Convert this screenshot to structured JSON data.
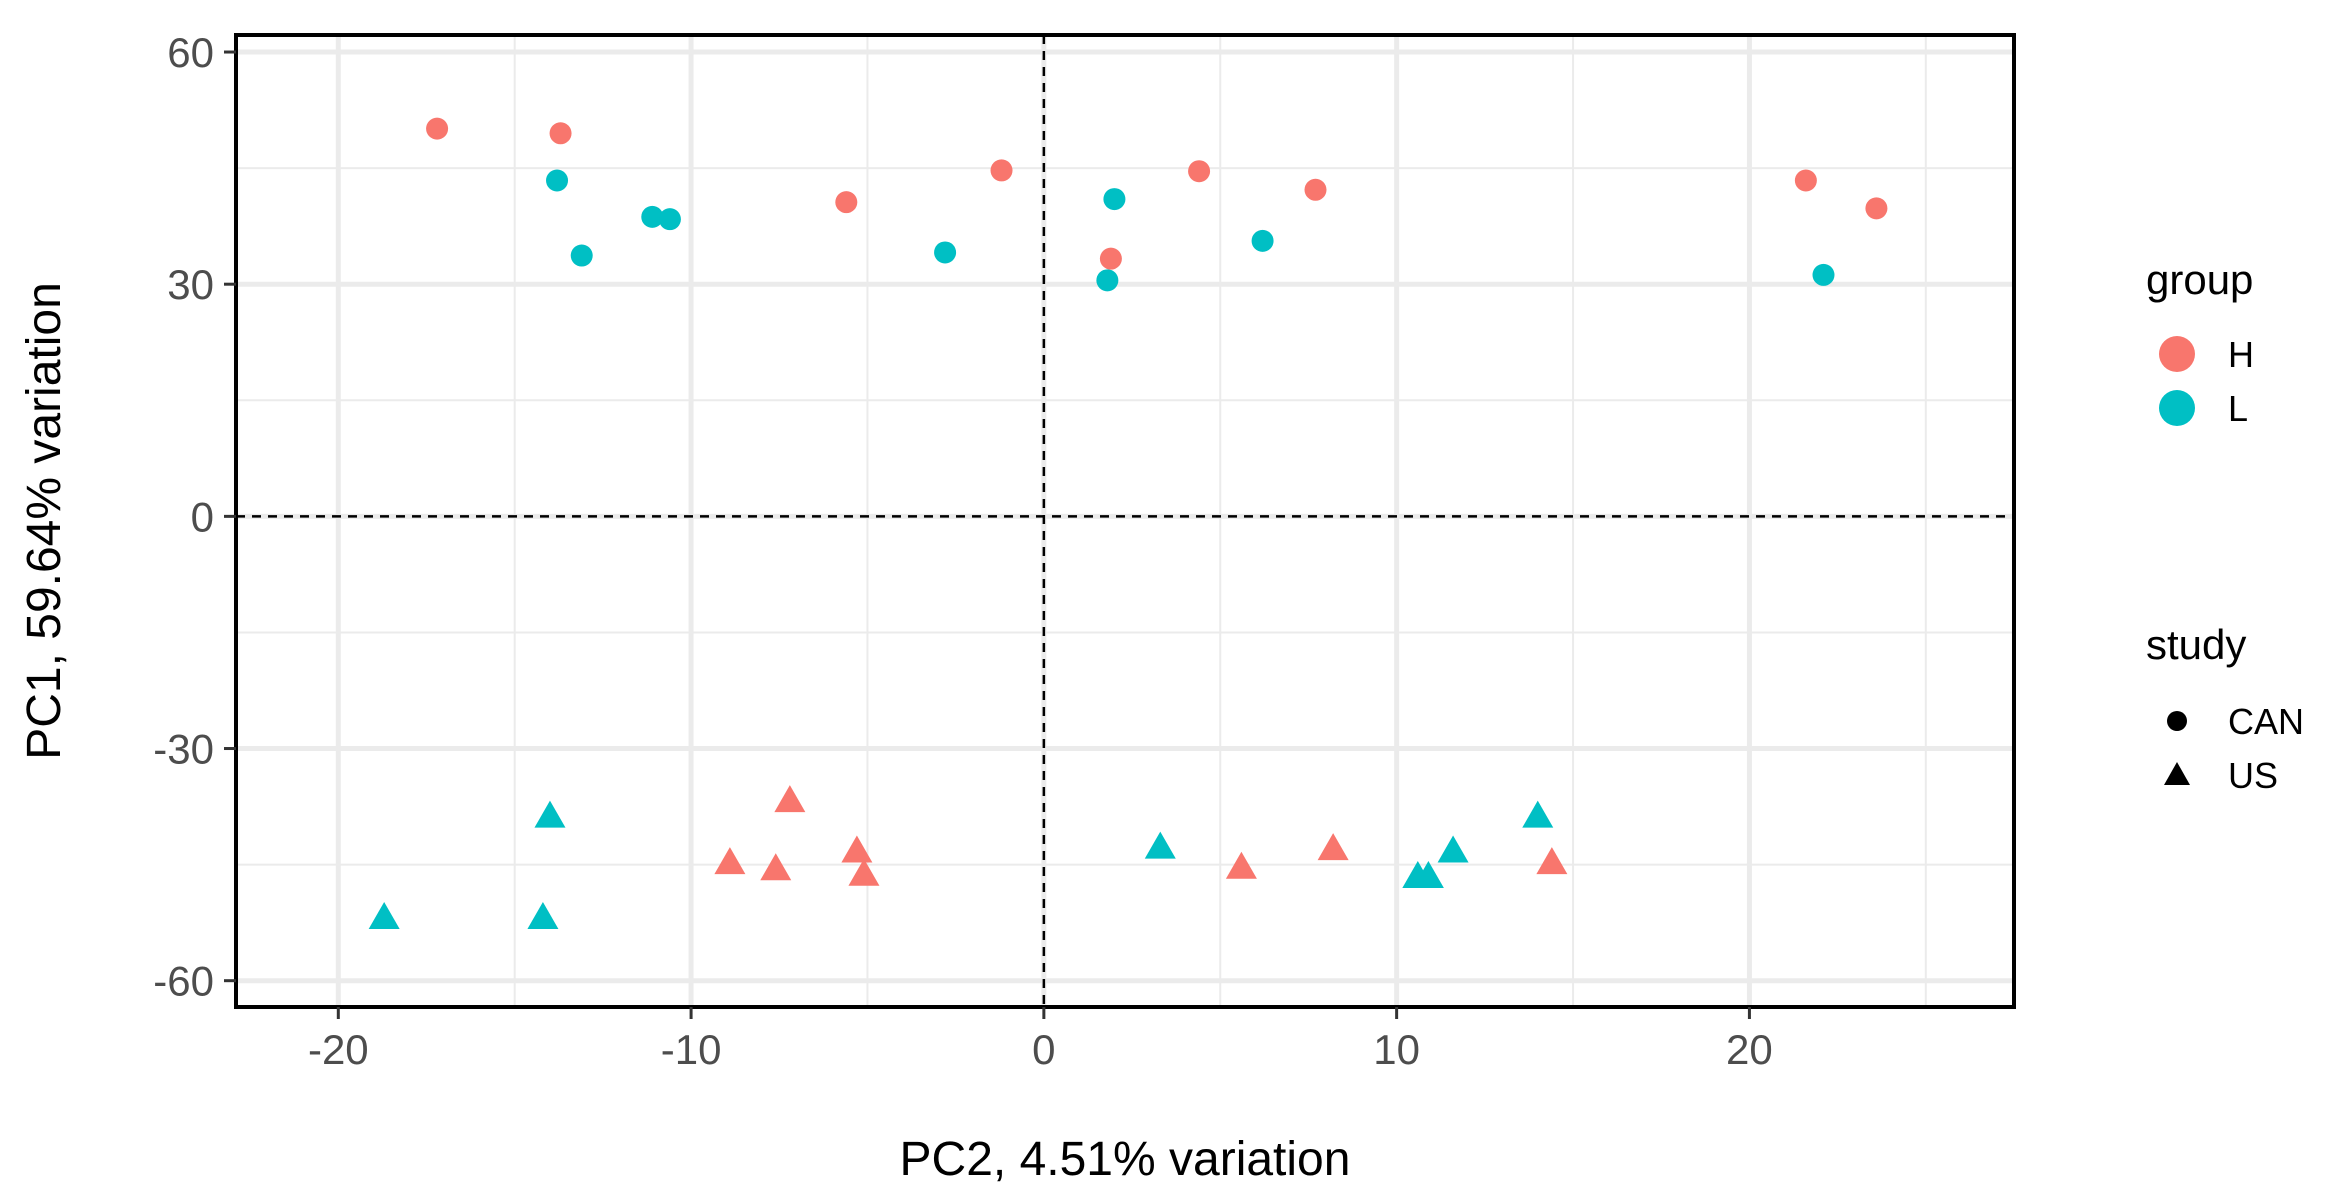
{
  "colors": {
    "H": "#F8766D",
    "L": "#00BFC4",
    "guide": "#000000",
    "grid": "#EBEBEB"
  },
  "chart_data": {
    "type": "scatter",
    "title": "",
    "xlabel": "PC2, 4.51% variation",
    "ylabel": "PC1, 59.64% variation",
    "xlim": [
      -22.9,
      27.5
    ],
    "ylim": [
      -63.4,
      62.2
    ],
    "xticks": [
      -20,
      -10,
      0,
      10,
      20
    ],
    "xtick_labels": [
      "-20",
      "-10",
      "0",
      "10",
      "20"
    ],
    "yticks": [
      60,
      30,
      0,
      -30,
      -60
    ],
    "ytick_labels": [
      "60",
      "30",
      "0",
      "-30",
      "-60"
    ],
    "reference_lines": {
      "x": 0,
      "y": 0,
      "style": "dashed"
    },
    "grid": true,
    "legend_position": "right",
    "legends": [
      {
        "title": "group",
        "entries": [
          {
            "label": "H",
            "color": "#F8766D"
          },
          {
            "label": "L",
            "color": "#00BFC4"
          }
        ]
      },
      {
        "title": "study",
        "entries": [
          {
            "label": "CAN",
            "shape": "circle"
          },
          {
            "label": "US",
            "shape": "triangle"
          }
        ]
      }
    ],
    "points": [
      {
        "x": -17.2,
        "y": 50.1,
        "group": "H",
        "study": "CAN"
      },
      {
        "x": -13.7,
        "y": 49.5,
        "group": "H",
        "study": "CAN"
      },
      {
        "x": -5.6,
        "y": 40.6,
        "group": "H",
        "study": "CAN"
      },
      {
        "x": -1.2,
        "y": 44.7,
        "group": "H",
        "study": "CAN"
      },
      {
        "x": 1.9,
        "y": 33.3,
        "group": "H",
        "study": "CAN"
      },
      {
        "x": 4.4,
        "y": 44.6,
        "group": "H",
        "study": "CAN"
      },
      {
        "x": 7.7,
        "y": 42.2,
        "group": "H",
        "study": "CAN"
      },
      {
        "x": 21.6,
        "y": 43.4,
        "group": "H",
        "study": "CAN"
      },
      {
        "x": 23.6,
        "y": 39.8,
        "group": "H",
        "study": "CAN"
      },
      {
        "x": -13.8,
        "y": 43.4,
        "group": "L",
        "study": "CAN"
      },
      {
        "x": -13.1,
        "y": 33.7,
        "group": "L",
        "study": "CAN"
      },
      {
        "x": -11.1,
        "y": 38.7,
        "group": "L",
        "study": "CAN"
      },
      {
        "x": -10.6,
        "y": 38.4,
        "group": "L",
        "study": "CAN"
      },
      {
        "x": -2.8,
        "y": 34.1,
        "group": "L",
        "study": "CAN"
      },
      {
        "x": 2.0,
        "y": 41.0,
        "group": "L",
        "study": "CAN"
      },
      {
        "x": 1.8,
        "y": 30.5,
        "group": "L",
        "study": "CAN"
      },
      {
        "x": 6.2,
        "y": 35.6,
        "group": "L",
        "study": "CAN"
      },
      {
        "x": 22.1,
        "y": 31.2,
        "group": "L",
        "study": "CAN"
      },
      {
        "x": -7.2,
        "y": -36.9,
        "group": "H",
        "study": "US"
      },
      {
        "x": -8.9,
        "y": -44.9,
        "group": "H",
        "study": "US"
      },
      {
        "x": -7.6,
        "y": -45.7,
        "group": "H",
        "study": "US"
      },
      {
        "x": -5.3,
        "y": -43.4,
        "group": "H",
        "study": "US"
      },
      {
        "x": -5.1,
        "y": -46.4,
        "group": "H",
        "study": "US"
      },
      {
        "x": 5.6,
        "y": -45.5,
        "group": "H",
        "study": "US"
      },
      {
        "x": 8.2,
        "y": -43.1,
        "group": "H",
        "study": "US"
      },
      {
        "x": 14.4,
        "y": -44.9,
        "group": "H",
        "study": "US"
      },
      {
        "x": -18.7,
        "y": -52.0,
        "group": "L",
        "study": "US"
      },
      {
        "x": -14.0,
        "y": -38.9,
        "group": "L",
        "study": "US"
      },
      {
        "x": -14.2,
        "y": -52.0,
        "group": "L",
        "study": "US"
      },
      {
        "x": 3.3,
        "y": -42.9,
        "group": "L",
        "study": "US"
      },
      {
        "x": 10.6,
        "y": -46.7,
        "group": "L",
        "study": "US"
      },
      {
        "x": 10.9,
        "y": -46.7,
        "group": "L",
        "study": "US"
      },
      {
        "x": 11.6,
        "y": -43.4,
        "group": "L",
        "study": "US"
      },
      {
        "x": 14.0,
        "y": -38.9,
        "group": "L",
        "study": "US"
      }
    ]
  }
}
